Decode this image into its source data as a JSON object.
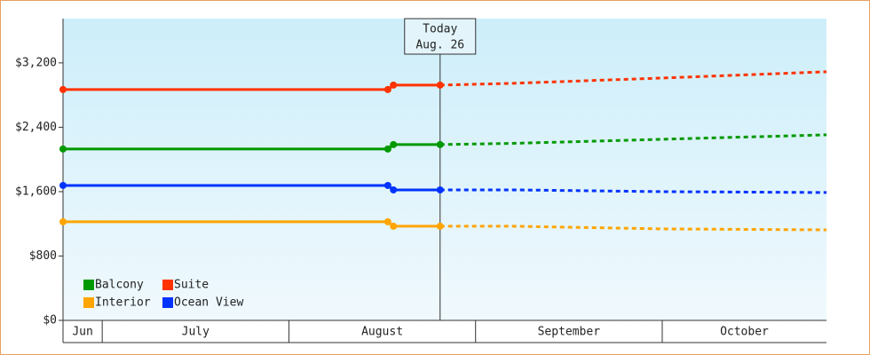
{
  "chart_data": {
    "type": "line",
    "x": [
      6.79,
      8.53,
      8.56,
      8.81,
      9.2,
      10,
      10.88
    ],
    "xlim": [
      6.79,
      10.88
    ],
    "categories": [
      "Jun",
      "July",
      "August",
      "September",
      "October"
    ],
    "xticks": [
      7,
      8,
      9,
      10
    ],
    "ylim": [
      0,
      3750
    ],
    "yticks": [
      {
        "value": 0,
        "label": "$0"
      },
      {
        "value": 800,
        "label": "$800"
      },
      {
        "value": 1600,
        "label": "$1,600"
      },
      {
        "value": 2400,
        "label": "$2,400"
      },
      {
        "value": 3200,
        "label": "$3,200"
      }
    ],
    "today": {
      "x": 8.81,
      "label": "Today",
      "date": "Aug. 26"
    },
    "legend": "lower left",
    "series": [
      {
        "name": "Balcony",
        "color": "#009900",
        "values": [
          2130,
          2130,
          2185,
          2185,
          2200,
          2251,
          2306
        ]
      },
      {
        "name": "Suite",
        "color": "#ff3300",
        "values": [
          2869,
          2869,
          2924,
          2924,
          2946,
          3012,
          3090
        ]
      },
      {
        "name": "Interior",
        "color": "#ffa500",
        "values": [
          1225,
          1225,
          1170,
          1170,
          1170,
          1137,
          1125
        ]
      },
      {
        "name": "Ocean View",
        "color": "#0033ff",
        "values": [
          1677,
          1677,
          1622,
          1622,
          1622,
          1600,
          1589
        ]
      }
    ]
  }
}
